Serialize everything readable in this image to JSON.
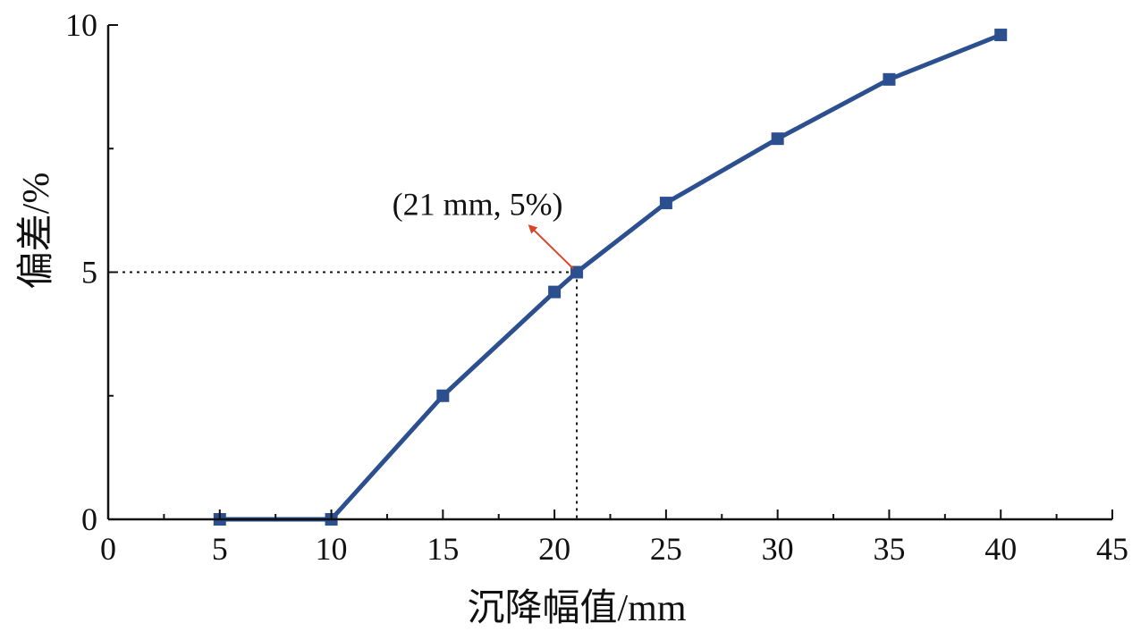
{
  "chart_data": {
    "type": "line",
    "title": "",
    "xlabel": "沉降幅值/mm",
    "ylabel": "偏差/%",
    "xlim": [
      0,
      45
    ],
    "ylim": [
      0,
      10
    ],
    "xticks": [
      0,
      5,
      10,
      15,
      20,
      25,
      30,
      35,
      40,
      45
    ],
    "yticks": [
      0,
      5,
      10
    ],
    "x_tick_labels": [
      "0",
      "5",
      "10",
      "15",
      "20",
      "25",
      "30",
      "35",
      "40",
      "45"
    ],
    "y_tick_labels": [
      "0",
      "5",
      "10"
    ],
    "grid": false,
    "series": [
      {
        "x": [
          5,
          10,
          15,
          20,
          21,
          25,
          30,
          35,
          40
        ],
        "y": [
          0,
          0,
          2.5,
          4.6,
          5.0,
          6.4,
          7.7,
          8.9,
          9.8
        ],
        "color": "#2b4f8f",
        "marker": "square"
      }
    ],
    "annotation": {
      "text": "(21 mm, 5%)",
      "x": 21,
      "y": 5,
      "arrow_color": "#d9472b",
      "reference_lines": "dotted"
    }
  }
}
